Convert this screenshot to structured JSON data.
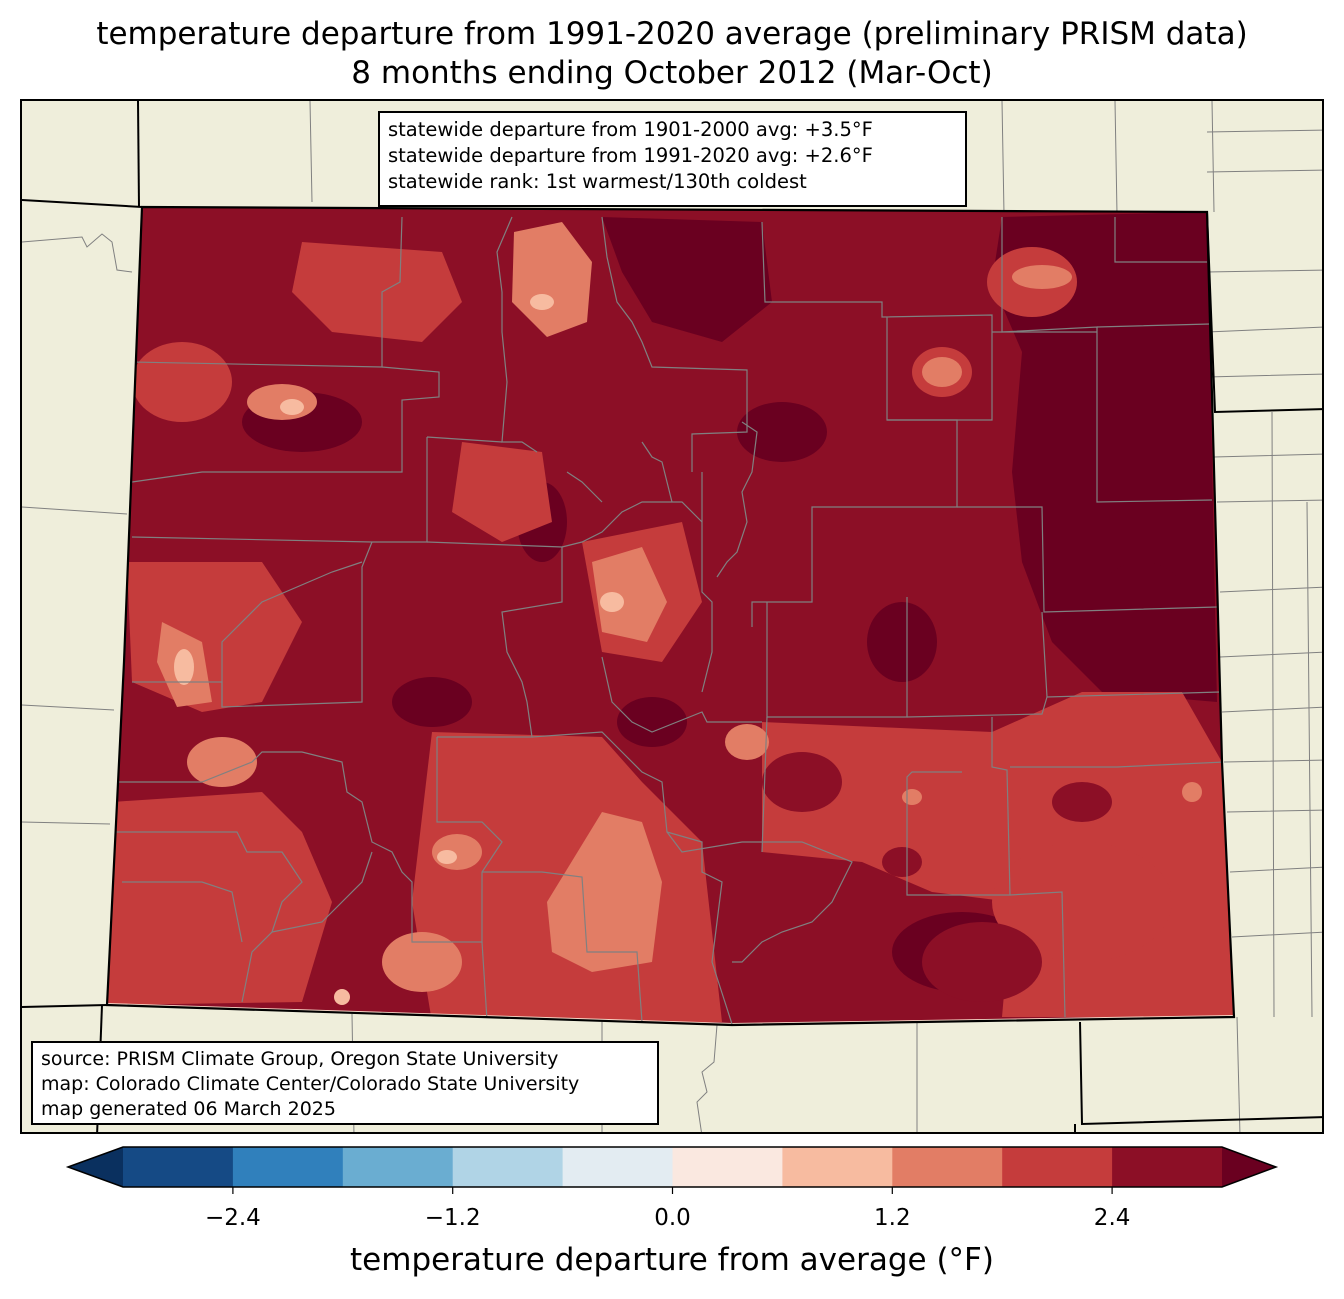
{
  "title": {
    "line1": "temperature departure from 1991-2020 average (preliminary PRISM data)",
    "line2": "8 months ending October 2012 (Mar-Oct)"
  },
  "stats_box": {
    "line1": "statewide departure from 1901-2000 avg: +3.5°F",
    "line2": "statewide departure from 1991-2020 avg: +2.6°F",
    "line3": "statewide rank: 1st warmest/130th coldest"
  },
  "credits_box": {
    "line1": "source: PRISM Climate Group, Oregon State University",
    "line2": "map: Colorado Climate Center/Colorado State University",
    "line3": "map generated 06 March 2025"
  },
  "colorbar": {
    "label": "temperature departure from average (°F)",
    "levels": [
      -3.0,
      -2.4,
      -1.8,
      -1.2,
      -0.6,
      0.0,
      0.6,
      1.2,
      1.8,
      2.4,
      3.0
    ],
    "colors": [
      "#154a85",
      "#3080bc",
      "#6aadd1",
      "#b0d4e6",
      "#e3ecf2",
      "#fae8e0",
      "#f7bba0",
      "#e27d65",
      "#c53c3c",
      "#8c0f26"
    ],
    "under_color": "#0a305f",
    "over_color": "#6a0020",
    "tick_labels": [
      {
        "value": -2.4,
        "text": "−2.4"
      },
      {
        "value": -1.2,
        "text": "−1.2"
      },
      {
        "value": 0.0,
        "text": "0.0"
      },
      {
        "value": 1.2,
        "text": "1.2"
      },
      {
        "value": 2.4,
        "text": "2.4"
      }
    ]
  },
  "map": {
    "region": "Colorado",
    "background_color": "#efeedb",
    "county_line_color": "#808080",
    "state_line_color": "#000000"
  }
}
